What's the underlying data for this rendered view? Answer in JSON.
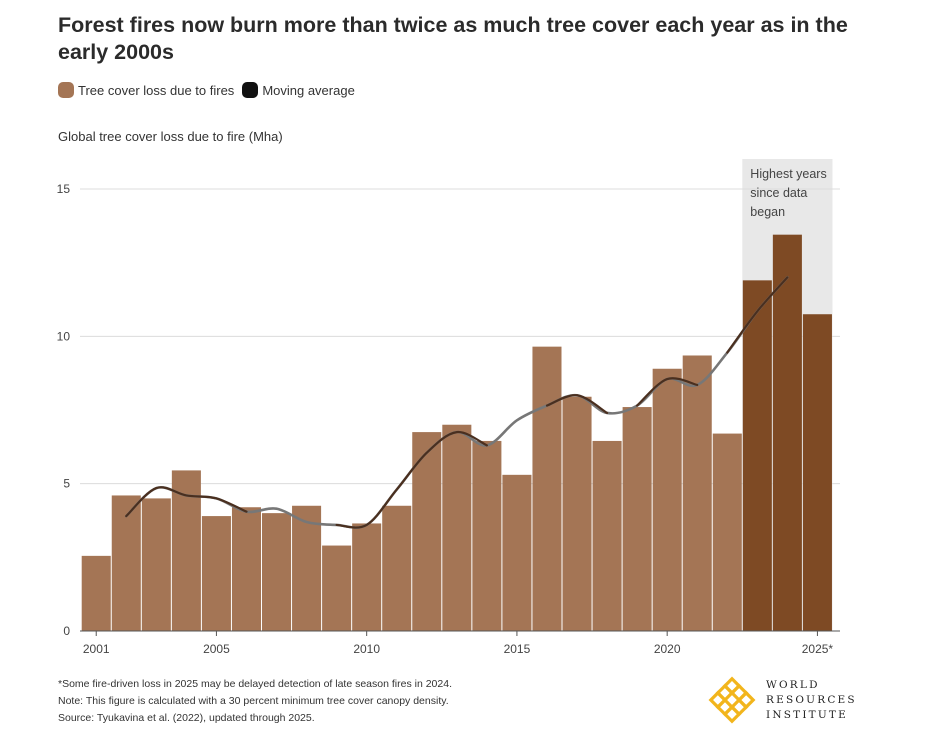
{
  "title": "Forest fires now burn more than twice as much tree cover each year as in the early 2000s",
  "legend": {
    "bars_label": "Tree cover loss due to fires",
    "line_label": "Moving average"
  },
  "colors": {
    "bar": "#a47555",
    "bar_highlight": "#7e4a24",
    "line_light": "#777777",
    "line_dark": "#4a2f1f",
    "highlight_band": "#e8e8e8"
  },
  "annotation": {
    "text_lines": [
      "Highest years",
      "since data",
      "began"
    ]
  },
  "footnotes": [
    "*Some fire-driven loss in 2025 may be delayed detection of late season fires in 2024.",
    "Note: This figure is calculated with a 30 percent minimum tree cover canopy density.",
    "Source: Tyukavina et al. (2022), updated through 2025."
  ],
  "logo": {
    "lines": [
      "WORLD",
      "RESOURCES",
      "INSTITUTE"
    ]
  },
  "chart_data": {
    "type": "bar",
    "title": "Forest fires now burn more than twice as much tree cover each year as in the early 2000s",
    "ylabel": "Global tree cover loss due to fire (Mha)",
    "xlabel": "",
    "ylim": [
      0,
      15
    ],
    "yticks": [
      0,
      5,
      10,
      15
    ],
    "xtick_labels": [
      {
        "year": 2001,
        "label": "2001"
      },
      {
        "year": 2005,
        "label": "2005"
      },
      {
        "year": 2010,
        "label": "2010"
      },
      {
        "year": 2015,
        "label": "2015"
      },
      {
        "year": 2020,
        "label": "2020"
      },
      {
        "year": 2025,
        "label": "2025*"
      }
    ],
    "grid": "horizontal",
    "legend_position": "top-left",
    "categories": [
      2001,
      2002,
      2003,
      2004,
      2005,
      2006,
      2007,
      2008,
      2009,
      2010,
      2011,
      2012,
      2013,
      2014,
      2015,
      2016,
      2017,
      2018,
      2019,
      2020,
      2021,
      2022,
      2023,
      2024,
      2025
    ],
    "series": [
      {
        "name": "Tree cover loss due to fires",
        "values": [
          2.55,
          4.6,
          4.5,
          5.45,
          3.9,
          4.2,
          4.0,
          4.25,
          2.9,
          3.65,
          4.25,
          6.75,
          7.0,
          6.45,
          5.3,
          9.65,
          7.95,
          6.45,
          7.6,
          8.9,
          9.35,
          6.7,
          11.9,
          13.45,
          10.75
        ],
        "highlighted": [
          2023,
          2024,
          2025
        ]
      },
      {
        "name": "Moving average",
        "x": [
          2002,
          2003,
          2004,
          2005,
          2006,
          2007,
          2008,
          2009,
          2010,
          2011,
          2012,
          2013,
          2014,
          2015,
          2016,
          2017,
          2018,
          2019,
          2020,
          2021,
          2022,
          2023,
          2024
        ],
        "values": [
          3.9,
          4.85,
          4.6,
          4.5,
          4.05,
          4.15,
          3.7,
          3.6,
          3.6,
          4.8,
          6.05,
          6.75,
          6.3,
          7.15,
          7.65,
          8.0,
          7.4,
          7.65,
          8.55,
          8.35,
          9.45,
          10.85,
          12.0
        ],
        "dark_segments": [
          [
            2002,
            2006
          ],
          [
            2009,
            2014
          ],
          [
            2016,
            2018
          ],
          [
            2019,
            2021
          ],
          [
            2022,
            2024
          ]
        ]
      }
    ],
    "annotation": {
      "text": "Highest years since data began",
      "years": [
        2023,
        2025
      ]
    }
  }
}
